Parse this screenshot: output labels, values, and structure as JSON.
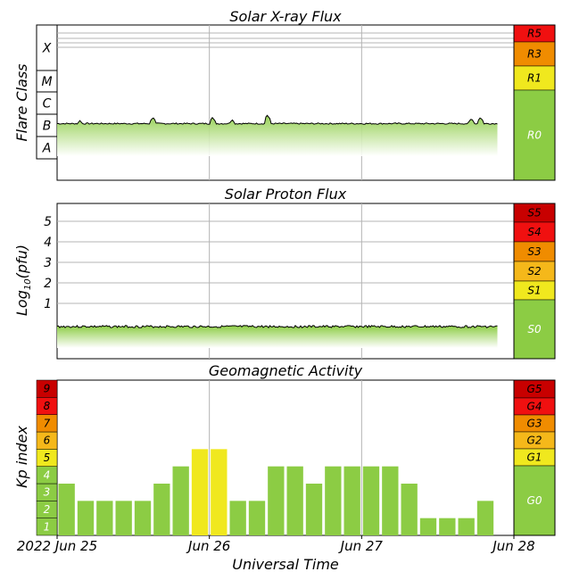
{
  "colors": {
    "green": "#8ccc44",
    "yellow": "#f0e81e",
    "light_orange": "#f5b81a",
    "orange": "#f08c00",
    "red": "#f01010",
    "dark_red": "#c80000",
    "grid": "#b4b4b4",
    "trace": "#000000"
  },
  "x_axis": {
    "label": "Universal Time",
    "ticks": [
      "2022 Jun 25",
      "Jun 26",
      "Jun 27",
      "Jun 28"
    ],
    "range_days": [
      0,
      3
    ]
  },
  "xray": {
    "title": "Solar X-ray Flux",
    "ylabel": "Flare Class",
    "classes": [
      "X",
      "M",
      "C",
      "B",
      "A"
    ],
    "scales": [
      "R5",
      "R3",
      "R1",
      "R0"
    ]
  },
  "proton": {
    "title": "Solar Proton Flux",
    "ylabel_base": "Log",
    "ylabel_sub": "10",
    "ylabel_unit": "(pfu)",
    "ticks": [
      "1",
      "2",
      "3",
      "4",
      "5"
    ],
    "scales": [
      "S5",
      "S4",
      "S3",
      "S2",
      "S1",
      "S0"
    ]
  },
  "geo": {
    "title": "Geomagnetic Activity",
    "ylabel": "Kp index",
    "kp_labels": [
      "1",
      "2",
      "3",
      "4",
      "5",
      "6",
      "7",
      "8",
      "9"
    ],
    "scales": [
      "G5",
      "G4",
      "G3",
      "G2",
      "G1",
      "G0"
    ]
  },
  "chart_data": [
    {
      "type": "area",
      "title": "Solar X-ray Flux",
      "ylabel": "Flare Class",
      "xlabel": "Universal Time",
      "baseline_class": "B",
      "x_days": [
        0.0,
        0.15,
        0.3,
        0.58,
        0.63,
        0.7,
        0.9,
        1.0,
        1.02,
        1.05,
        1.15,
        1.35,
        1.38,
        1.45,
        1.7,
        1.98,
        2.2,
        2.5,
        2.7,
        2.72,
        2.75,
        2.78,
        2.9
      ],
      "level_class": [
        2.65,
        2.72,
        2.65,
        2.6,
        2.85,
        2.6,
        2.55,
        2.65,
        2.85,
        2.6,
        2.75,
        2.7,
        2.95,
        2.55,
        2.6,
        2.55,
        2.45,
        2.45,
        2.55,
        2.8,
        2.45,
        2.85,
        2.5
      ]
    },
    {
      "type": "area",
      "title": "Solar Proton Flux",
      "ylabel": "Log10(pfu)",
      "xlabel": "Universal Time",
      "x_days": [
        0.0,
        2.9
      ],
      "log10_pfu": [
        -0.5,
        -0.5
      ]
    },
    {
      "type": "bar",
      "title": "Geomagnetic Activity",
      "ylabel": "Kp index",
      "xlabel": "Universal Time",
      "ylim": [
        0,
        9
      ],
      "interval_hours": 3,
      "values": [
        3,
        2,
        2,
        2,
        2,
        3,
        4,
        5,
        5,
        2,
        2,
        4,
        4,
        3,
        4,
        4,
        4,
        4,
        3,
        1,
        1,
        1,
        2,
        0
      ]
    }
  ]
}
